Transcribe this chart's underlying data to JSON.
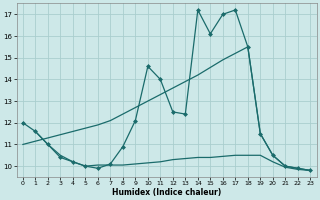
{
  "xlabel": "Humidex (Indice chaleur)",
  "xlim": [
    -0.5,
    23.5
  ],
  "ylim": [
    9.5,
    17.5
  ],
  "yticks": [
    10,
    11,
    12,
    13,
    14,
    15,
    16,
    17
  ],
  "xticks": [
    0,
    1,
    2,
    3,
    4,
    5,
    6,
    7,
    8,
    9,
    10,
    11,
    12,
    13,
    14,
    15,
    16,
    17,
    18,
    19,
    20,
    21,
    22,
    23
  ],
  "bg_color": "#cde8e8",
  "grid_color": "#aacece",
  "line_color": "#1a6b6b",
  "main_x": [
    0,
    1,
    2,
    3,
    4,
    5,
    6,
    7,
    8,
    9,
    10,
    11,
    12,
    13,
    14,
    15,
    16,
    17,
    18,
    19,
    20,
    21,
    22,
    23
  ],
  "main_y": [
    12.0,
    11.6,
    11.0,
    10.4,
    10.2,
    10.0,
    9.9,
    10.1,
    10.9,
    12.1,
    14.6,
    14.0,
    12.5,
    12.4,
    17.2,
    16.1,
    17.0,
    17.2,
    15.5,
    11.5,
    10.5,
    10.0,
    9.9,
    9.8
  ],
  "trend_x": [
    0,
    1,
    2,
    3,
    4,
    5,
    6,
    7,
    8,
    9,
    10,
    11,
    12,
    13,
    14,
    15,
    16,
    17,
    18,
    19,
    20,
    21,
    22,
    23
  ],
  "trend_y": [
    11.0,
    11.15,
    11.3,
    11.45,
    11.6,
    11.75,
    11.9,
    12.1,
    12.4,
    12.7,
    13.0,
    13.3,
    13.6,
    13.9,
    14.2,
    14.55,
    14.9,
    15.2,
    15.5,
    11.5,
    10.5,
    10.0,
    9.9,
    9.8
  ],
  "low_x": [
    1,
    2,
    3,
    4,
    5,
    6,
    7,
    8,
    9,
    10,
    11,
    12,
    13,
    14,
    15,
    16,
    17,
    18,
    19,
    20,
    21,
    22,
    23
  ],
  "low_y": [
    11.6,
    11.0,
    10.5,
    10.2,
    10.0,
    10.05,
    10.05,
    10.05,
    10.1,
    10.15,
    10.2,
    10.3,
    10.35,
    10.4,
    10.4,
    10.45,
    10.5,
    10.5,
    10.5,
    10.2,
    9.95,
    9.85,
    9.8
  ]
}
